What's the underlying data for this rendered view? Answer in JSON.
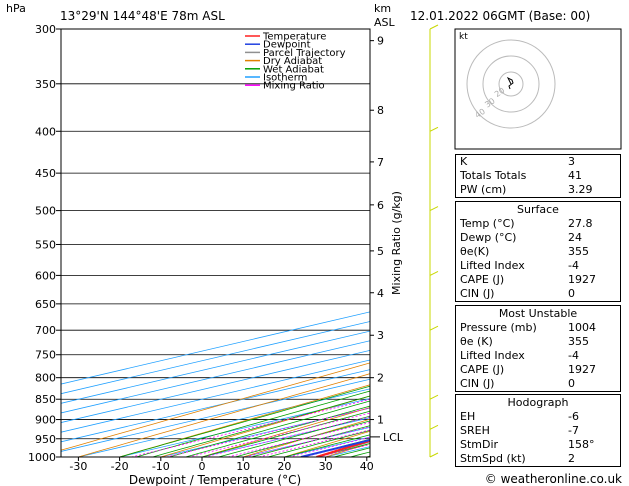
{
  "header": {
    "location": "13°29'N  144°48'E  78m  ASL",
    "datetime": "12.01.2022  06GMT  (Base: 00)",
    "hpa_unit": "hPa",
    "km_unit": "km",
    "asl_unit": "ASL"
  },
  "legend": [
    {
      "label": "Temperature",
      "color": "#ff2020"
    },
    {
      "label": "Dewpoint",
      "color": "#2040e0"
    },
    {
      "label": "Parcel Trajectory",
      "color": "#909090"
    },
    {
      "label": "Dry Adiabat",
      "color": "#e08000"
    },
    {
      "label": "Wet Adiabat",
      "color": "#00a000"
    },
    {
      "label": "Isotherm",
      "color": "#20a0ff"
    },
    {
      "label": "Mixing Ratio",
      "color": "#ff00ff"
    }
  ],
  "chart_data": {
    "type": "skew-t",
    "xlabel": "Dewpoint / Temperature (°C)",
    "ylabel_right": "Mixing Ratio (g/kg)",
    "xlim": [
      -40,
      40
    ],
    "pressure_range": [
      1000,
      300
    ],
    "pressure_ticks": [
      300,
      350,
      400,
      450,
      500,
      550,
      600,
      650,
      700,
      750,
      800,
      850,
      900,
      950,
      1000
    ],
    "temperature_ticks": [
      -30,
      -20,
      -10,
      0,
      10,
      20,
      30,
      40
    ],
    "km_ticks": [
      {
        "label": "9",
        "p": 310
      },
      {
        "label": "8",
        "p": 377
      },
      {
        "label": "7",
        "p": 436
      },
      {
        "label": "6",
        "p": 492
      },
      {
        "label": "5",
        "p": 560
      },
      {
        "label": "4",
        "p": 630
      },
      {
        "label": "3",
        "p": 710
      },
      {
        "label": "2",
        "p": 800
      },
      {
        "label": "1",
        "p": 900
      }
    ],
    "lcl": {
      "label": "LCL",
      "p": 945
    },
    "mixing_ratio_labels": [
      {
        "label": "1",
        "value": 1
      },
      {
        "label": "2",
        "value": 2
      },
      {
        "label": "3",
        "value": 3
      },
      {
        "label": "4",
        "value": 4
      },
      {
        "label": "6",
        "value": 6
      },
      {
        "label": "8",
        "value": 8
      },
      {
        "label": "10",
        "value": 10
      },
      {
        "label": "16",
        "value": 16
      },
      {
        "label": "20",
        "value": 20
      },
      {
        "label": "25",
        "value": 25
      }
    ],
    "temperature_profile": {
      "p": [
        1000,
        975,
        950,
        925,
        900,
        850,
        800,
        750,
        700,
        650,
        600,
        550,
        500,
        450,
        425,
        400,
        350,
        300
      ],
      "t": [
        27.8,
        25.5,
        23.5,
        22.5,
        22,
        19,
        16,
        12.5,
        9,
        5.5,
        1.5,
        -3,
        -8,
        -13,
        -15.5,
        -19,
        -27,
        -36
      ]
    },
    "dewpoint_profile": {
      "p": [
        1000,
        970,
        950,
        925,
        905,
        895,
        880,
        850,
        835,
        820,
        805,
        795,
        780,
        760,
        745,
        740,
        735,
        730,
        725,
        720,
        715,
        710,
        705,
        700,
        690,
        675,
        660,
        650,
        640,
        630,
        615,
        605,
        595,
        585,
        575,
        560,
        545,
        530,
        515,
        500,
        485,
        470,
        460,
        450,
        440,
        430,
        420,
        410,
        400,
        375,
        350,
        330,
        310,
        300
      ],
      "t": [
        24,
        23.5,
        23,
        17,
        12,
        6,
        15.5,
        15,
        14,
        12,
        8,
        11,
        10,
        5,
        -1,
        0,
        7,
        -3,
        -12,
        -14,
        -2,
        -10,
        -20,
        -8,
        -12,
        -10,
        -2.5,
        -3,
        -7,
        -8,
        -11,
        -13,
        -14,
        -14,
        -17,
        -17.5,
        -27,
        -21,
        -24,
        -25,
        -24,
        -26,
        -22.5,
        -33,
        -31,
        -35,
        -38,
        -37,
        -37,
        -39,
        -46,
        -39,
        -51,
        -50
      ]
    },
    "parcel_profile": {
      "p": [
        1000,
        950,
        900,
        850,
        800,
        750,
        700,
        650,
        600,
        550,
        500,
        450,
        400,
        350,
        300
      ],
      "t": [
        27.8,
        24,
        22,
        20,
        18,
        15.5,
        12,
        8.5,
        4.5,
        0,
        -5,
        -10.5,
        -17.5,
        -25,
        -34
      ]
    },
    "hodograph": {
      "rings": [
        {
          "label": "20"
        },
        {
          "label": "30"
        },
        {
          "label": "40"
        }
      ],
      "unit_label": "kt",
      "points": [
        [
          0,
          0
        ],
        [
          -1,
          2
        ],
        [
          -3,
          6
        ],
        [
          1,
          4
        ],
        [
          2,
          1
        ],
        [
          -2,
          -2
        ],
        [
          -1,
          -5
        ]
      ]
    },
    "wind_barbs": [
      {
        "p": 300,
        "dir": 120,
        "spd": 10
      },
      {
        "p": 400,
        "dir": 100,
        "spd": 5
      },
      {
        "p": 500,
        "dir": 80,
        "spd": 5
      },
      {
        "p": 600,
        "dir": 90,
        "spd": 5
      },
      {
        "p": 700,
        "dir": 110,
        "spd": 5
      },
      {
        "p": 850,
        "dir": 130,
        "spd": 5
      },
      {
        "p": 925,
        "dir": 150,
        "spd": 5
      },
      {
        "p": 1000,
        "dir": 158,
        "spd": 2
      }
    ]
  },
  "indices": {
    "top": [
      {
        "label": "K",
        "value": "3"
      },
      {
        "label": "Totals Totals",
        "value": "41"
      },
      {
        "label": "PW (cm)",
        "value": "3.29"
      }
    ],
    "surface": {
      "title": "Surface",
      "rows": [
        {
          "label": "Temp (°C)",
          "value": "27.8"
        },
        {
          "label": "Dewp (°C)",
          "value": "24"
        },
        {
          "label": "θe(K)",
          "value": "355"
        },
        {
          "label": "Lifted Index",
          "value": "-4"
        },
        {
          "label": "CAPE (J)",
          "value": "1927"
        },
        {
          "label": "CIN (J)",
          "value": "0"
        }
      ]
    },
    "unstable": {
      "title": "Most Unstable",
      "rows": [
        {
          "label": "Pressure (mb)",
          "value": "1004"
        },
        {
          "label": "θe (K)",
          "value": "355"
        },
        {
          "label": "Lifted Index",
          "value": "-4"
        },
        {
          "label": "CAPE (J)",
          "value": "1927"
        },
        {
          "label": "CIN (J)",
          "value": "0"
        }
      ]
    },
    "hodograph": {
      "title": "Hodograph",
      "rows": [
        {
          "label": "EH",
          "value": "-6"
        },
        {
          "label": "SREH",
          "value": "-7"
        },
        {
          "label": "StmDir",
          "value": "158°"
        },
        {
          "label": "StmSpd (kt)",
          "value": "2"
        }
      ]
    }
  },
  "copyright": "© weatheronline.co.uk"
}
